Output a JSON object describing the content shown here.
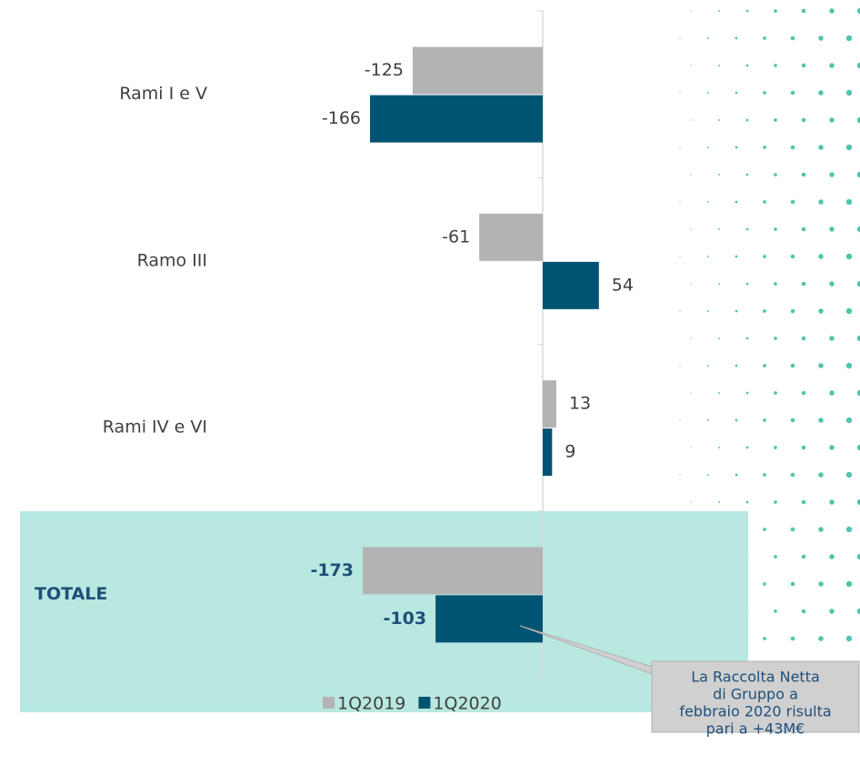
{
  "chart_data": {
    "type": "barh",
    "categories": [
      "Rami I e V",
      "Ramo III",
      "Rami IV e VI",
      "TOTALE"
    ],
    "series": [
      {
        "name": "1Q2019",
        "color": "#b3b3b3",
        "values": [
          -125,
          -61,
          13,
          -173
        ]
      },
      {
        "name": "1Q2020",
        "color": "#005473",
        "values": [
          -166,
          54,
          9,
          -103
        ]
      }
    ],
    "xlim": [
      -180,
      200
    ],
    "annotation": [
      "La Raccolta Netta",
      "di Gruppo a",
      "febbraio 2020 risulta",
      "pari a +43M€"
    ]
  }
}
